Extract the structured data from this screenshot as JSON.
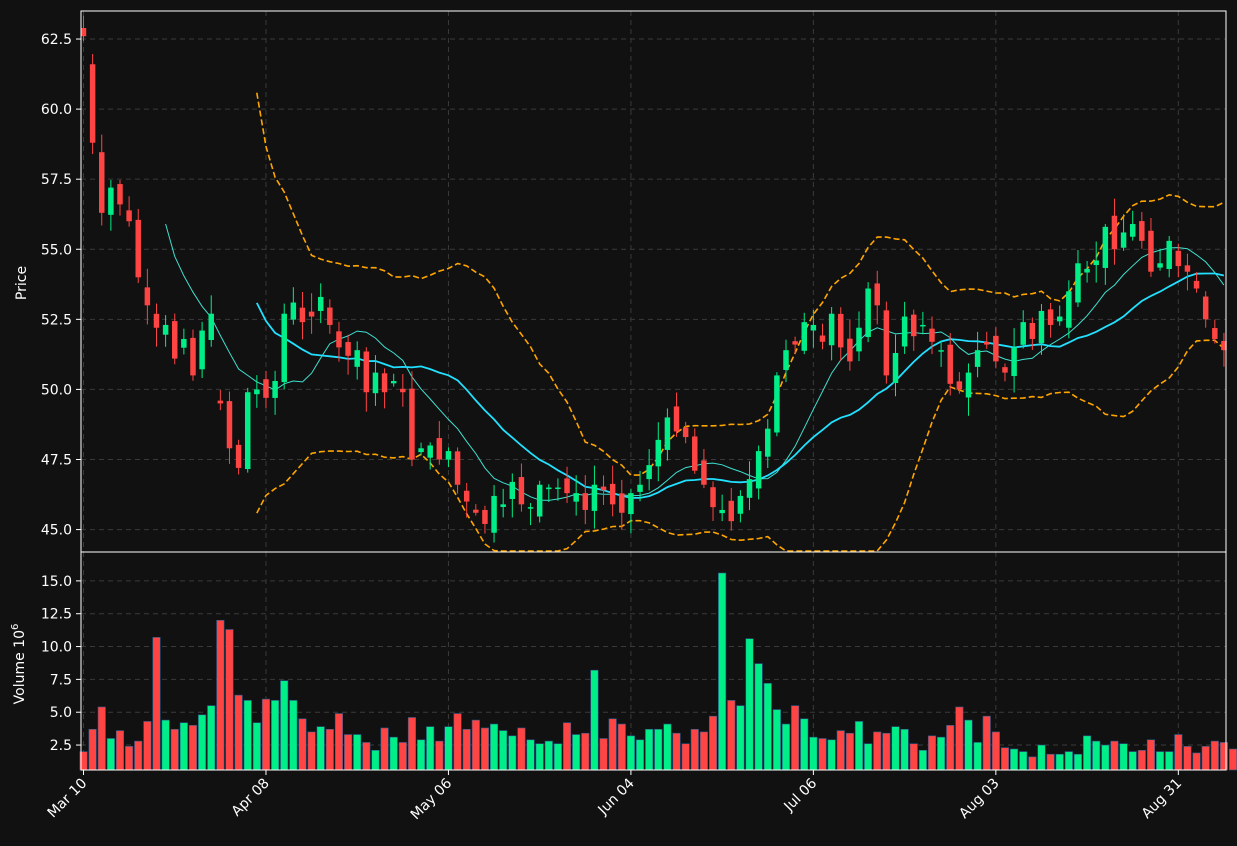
{
  "chart_data": {
    "type": "candlestick",
    "price_panel": {
      "ylabel": "Price",
      "ylim": [
        44.2,
        63.5
      ],
      "yticks": [
        45.0,
        47.5,
        50.0,
        52.5,
        55.0,
        57.5,
        60.0,
        62.5
      ],
      "ytick_labels": [
        "45.0",
        "47.5",
        "50.0",
        "52.5",
        "55.0",
        "57.5",
        "60.0",
        "62.5"
      ]
    },
    "volume_panel": {
      "ylabel": "Volume",
      "ylabel_exponent": "10",
      "ylabel_exponent_power": "6",
      "ylim": [
        0.6,
        17.2
      ],
      "yticks": [
        2.5,
        5.0,
        7.5,
        10.0,
        12.5,
        15.0
      ],
      "ytick_labels": [
        "2.5",
        "5.0",
        "7.5",
        "10.0",
        "12.5",
        "15.0"
      ]
    },
    "x_tick_labels": [
      "Mar 10",
      "Apr 08",
      "May 06",
      "Jun 04",
      "Jul 06",
      "Aug 03",
      "Aug 31"
    ],
    "x_tick_indices": [
      0,
      20,
      40,
      60,
      80,
      100,
      120
    ],
    "n_bars": 126,
    "grid": true,
    "colors": {
      "background": "#111111",
      "up": "#00ee88",
      "down": "#ff4444",
      "bollinger": "#ffa500",
      "ma_fast": "#3fe0d0",
      "ma_slow": "#22e0ff",
      "grid": "#3a3a3a",
      "text": "#ffffff"
    },
    "ohlc_key_closes": [
      [
        0,
        62.6
      ],
      [
        1,
        58.8
      ],
      [
        2,
        56.3
      ],
      [
        3,
        57.2
      ],
      [
        4,
        56.6
      ],
      [
        5,
        56.0
      ],
      [
        6,
        54.0
      ],
      [
        7,
        53.0
      ],
      [
        8,
        52.2
      ],
      [
        9,
        52.3
      ],
      [
        10,
        51.1
      ],
      [
        11,
        51.8
      ],
      [
        12,
        50.5
      ],
      [
        13,
        52.1
      ],
      [
        14,
        52.7
      ],
      [
        15,
        49.5
      ],
      [
        16,
        47.9
      ],
      [
        17,
        47.2
      ],
      [
        18,
        49.9
      ],
      [
        19,
        50.0
      ],
      [
        20,
        49.7
      ],
      [
        21,
        50.3
      ],
      [
        22,
        52.7
      ],
      [
        23,
        53.1
      ],
      [
        24,
        52.4
      ],
      [
        25,
        52.6
      ],
      [
        26,
        53.3
      ],
      [
        27,
        52.3
      ],
      [
        28,
        51.5
      ],
      [
        29,
        51.2
      ],
      [
        30,
        51.4
      ],
      [
        31,
        49.9
      ],
      [
        32,
        50.6
      ],
      [
        33,
        49.9
      ],
      [
        34,
        50.3
      ],
      [
        35,
        49.9
      ],
      [
        36,
        47.5
      ],
      [
        37,
        47.9
      ],
      [
        38,
        48.0
      ],
      [
        39,
        47.5
      ],
      [
        40,
        47.8
      ],
      [
        41,
        46.6
      ],
      [
        42,
        46.0
      ],
      [
        43,
        45.6
      ],
      [
        44,
        45.2
      ],
      [
        45,
        46.2
      ],
      [
        46,
        45.9
      ],
      [
        47,
        46.7
      ],
      [
        48,
        45.9
      ],
      [
        49,
        45.8
      ],
      [
        50,
        46.6
      ],
      [
        51,
        46.5
      ],
      [
        52,
        46.5
      ],
      [
        53,
        46.3
      ],
      [
        54,
        46.3
      ],
      [
        55,
        45.7
      ],
      [
        56,
        46.6
      ],
      [
        57,
        46.4
      ],
      [
        58,
        45.9
      ],
      [
        59,
        45.6
      ],
      [
        60,
        46.3
      ],
      [
        61,
        46.6
      ],
      [
        62,
        47.3
      ],
      [
        63,
        48.2
      ],
      [
        64,
        49.0
      ],
      [
        65,
        48.5
      ],
      [
        66,
        48.3
      ],
      [
        67,
        47.1
      ],
      [
        68,
        46.6
      ],
      [
        69,
        45.8
      ],
      [
        70,
        45.7
      ],
      [
        71,
        45.3
      ],
      [
        72,
        46.2
      ],
      [
        73,
        46.8
      ],
      [
        74,
        47.8
      ],
      [
        75,
        48.6
      ],
      [
        76,
        50.5
      ],
      [
        77,
        51.4
      ],
      [
        78,
        51.6
      ],
      [
        79,
        52.4
      ],
      [
        80,
        52.3
      ],
      [
        81,
        51.7
      ],
      [
        82,
        52.7
      ],
      [
        83,
        51.5
      ],
      [
        84,
        51.0
      ],
      [
        85,
        52.2
      ],
      [
        86,
        53.6
      ],
      [
        87,
        53.0
      ],
      [
        88,
        50.5
      ],
      [
        89,
        51.3
      ],
      [
        90,
        52.6
      ],
      [
        91,
        51.9
      ],
      [
        92,
        52.3
      ],
      [
        93,
        51.7
      ],
      [
        94,
        51.4
      ],
      [
        95,
        50.2
      ],
      [
        96,
        50.0
      ],
      [
        97,
        50.6
      ],
      [
        98,
        51.4
      ],
      [
        99,
        51.6
      ],
      [
        100,
        51.0
      ],
      [
        101,
        50.6
      ],
      [
        102,
        51.5
      ],
      [
        103,
        52.4
      ],
      [
        104,
        51.8
      ],
      [
        105,
        52.8
      ],
      [
        106,
        52.3
      ],
      [
        107,
        52.6
      ],
      [
        108,
        53.5
      ],
      [
        109,
        54.5
      ],
      [
        110,
        54.3
      ],
      [
        111,
        54.6
      ],
      [
        112,
        55.8
      ],
      [
        113,
        55.0
      ],
      [
        114,
        55.6
      ],
      [
        115,
        55.9
      ],
      [
        116,
        55.3
      ],
      [
        117,
        54.2
      ],
      [
        118,
        54.5
      ],
      [
        119,
        55.3
      ],
      [
        120,
        54.4
      ],
      [
        121,
        54.2
      ],
      [
        122,
        53.6
      ],
      [
        123,
        52.5
      ],
      [
        124,
        51.8
      ],
      [
        125,
        51.4
      ]
    ],
    "volume_millions": [
      2.0,
      3.7,
      5.4,
      3.0,
      3.6,
      2.4,
      2.8,
      4.3,
      10.7,
      4.4,
      3.7,
      4.2,
      4.0,
      4.8,
      5.5,
      12.0,
      11.3,
      6.3,
      5.9,
      4.2,
      6.0,
      5.9,
      7.4,
      5.9,
      4.5,
      3.5,
      3.9,
      3.7,
      4.9,
      3.3,
      3.3,
      2.7,
      2.1,
      3.8,
      3.1,
      2.7,
      4.6,
      2.9,
      3.9,
      2.8,
      3.9,
      4.9,
      3.7,
      4.4,
      3.8,
      4.1,
      3.6,
      3.2,
      3.8,
      2.9,
      2.6,
      2.8,
      2.6,
      4.2,
      3.3,
      3.4,
      8.2,
      3.0,
      4.5,
      4.1,
      3.2,
      2.9,
      3.7,
      3.7,
      4.1,
      3.4,
      2.6,
      3.7,
      3.5,
      4.7,
      15.6,
      5.9,
      5.5,
      10.6,
      8.7,
      7.2,
      5.2,
      4.1,
      5.5,
      4.5,
      3.1,
      3.0,
      2.9,
      3.6,
      3.4,
      4.3,
      2.6,
      3.5,
      3.4,
      3.9,
      3.7,
      2.6,
      2.1,
      3.2,
      3.1,
      4.0,
      5.4,
      4.4,
      2.7,
      4.7,
      3.5,
      2.3,
      2.2,
      2.0,
      1.6,
      2.5,
      1.8,
      1.8,
      2.0,
      1.8,
      3.2,
      2.8,
      2.5,
      2.8,
      2.6,
      2.0,
      2.1,
      2.9,
      2.0,
      2.0,
      3.3,
      2.4,
      1.9,
      2.4,
      2.8,
      2.7,
      2.2
    ]
  }
}
